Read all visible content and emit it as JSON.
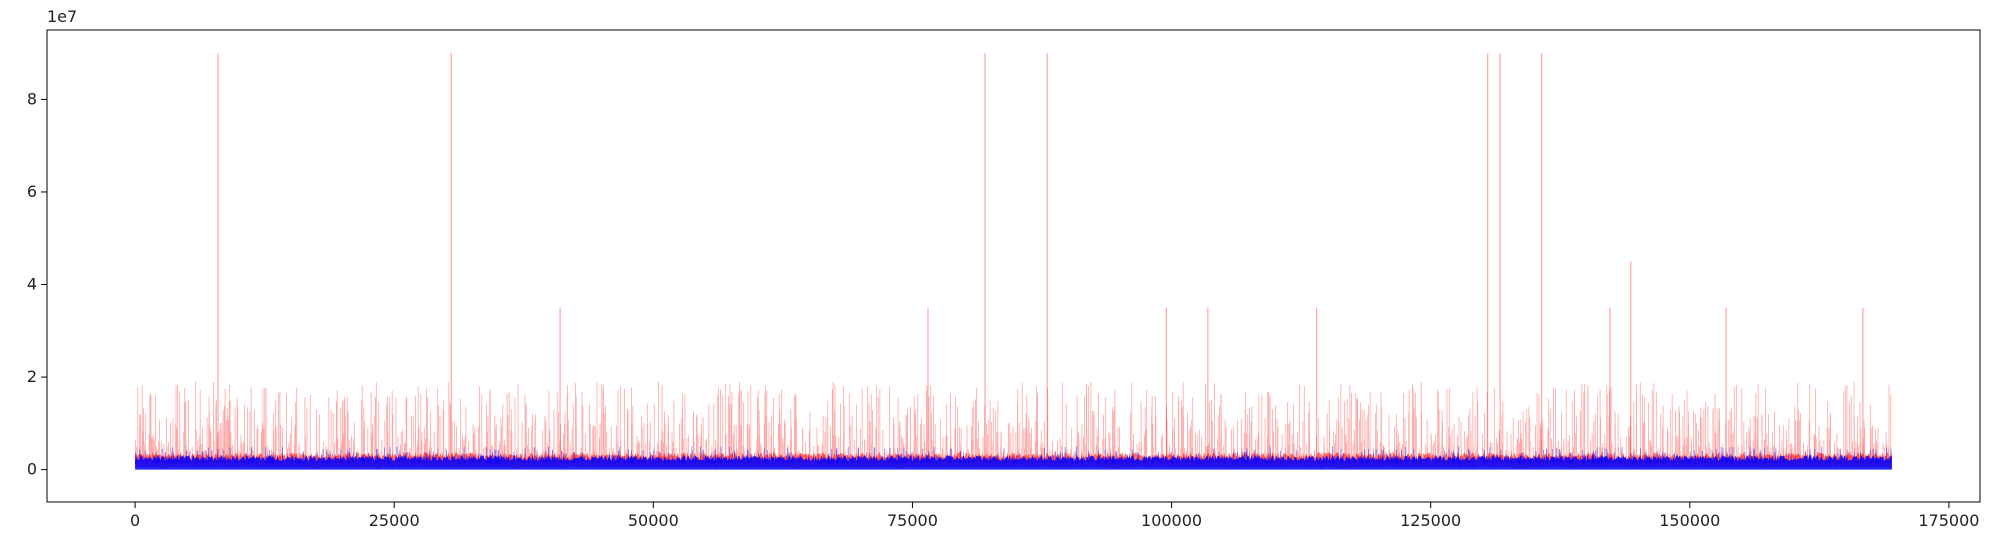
{
  "chart_data": {
    "type": "line",
    "title": "",
    "xlabel": "",
    "ylabel": "",
    "xlim": [
      -8500,
      178000
    ],
    "ylim": [
      -0.7,
      9.5
    ],
    "y_scale_label": "1e7",
    "grid": false,
    "legend": "none",
    "x_ticks": [
      0,
      25000,
      50000,
      75000,
      100000,
      125000,
      150000,
      175000
    ],
    "x_tick_labels": [
      "0",
      "25000",
      "50000",
      "75000",
      "100000",
      "125000",
      "150000",
      "175000"
    ],
    "y_ticks": [
      0,
      2,
      4,
      6,
      8
    ],
    "y_tick_labels": [
      "0",
      "2",
      "4",
      "6",
      "8"
    ],
    "x_range": [
      0,
      169500
    ],
    "series": [
      {
        "color": "#ff0000",
        "baseline_band": [
          0.05,
          0.3
        ],
        "typical_spike_max": 1.9,
        "spikes": [
          {
            "x": 8000,
            "y": 9.0
          },
          {
            "x": 30500,
            "y": 9.0
          },
          {
            "x": 41000,
            "y": 3.5
          },
          {
            "x": 76500,
            "y": 3.5
          },
          {
            "x": 82000,
            "y": 9.0
          },
          {
            "x": 88000,
            "y": 9.0
          },
          {
            "x": 99500,
            "y": 3.5
          },
          {
            "x": 103500,
            "y": 3.5
          },
          {
            "x": 114000,
            "y": 3.5
          },
          {
            "x": 130500,
            "y": 9.0
          },
          {
            "x": 131700,
            "y": 9.0
          },
          {
            "x": 135700,
            "y": 9.0
          },
          {
            "x": 142300,
            "y": 3.5
          },
          {
            "x": 144300,
            "y": 4.5
          },
          {
            "x": 153500,
            "y": 3.5
          },
          {
            "x": 166700,
            "y": 3.5
          }
        ]
      },
      {
        "color": "#0000ff",
        "baseline_band": [
          0.0,
          0.25
        ],
        "typical_spike_max": 0.5,
        "spikes": []
      }
    ]
  }
}
